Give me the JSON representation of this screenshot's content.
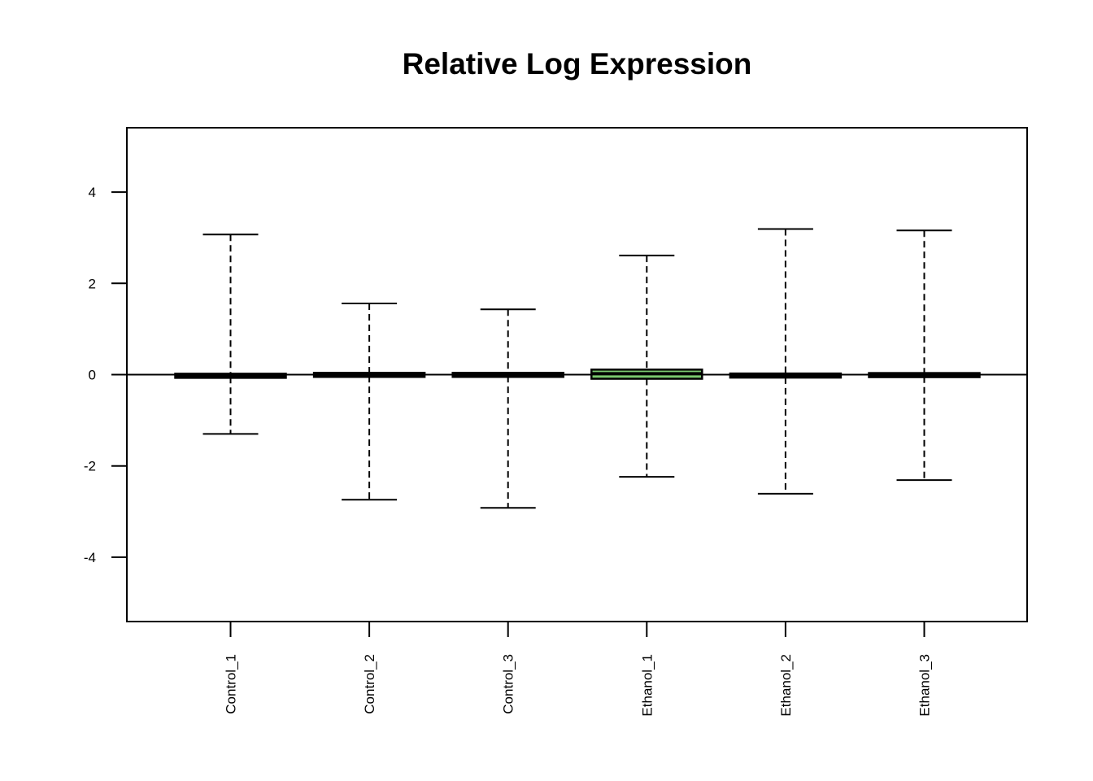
{
  "chart_data": {
    "type": "boxplot",
    "title": "Relative Log Expression",
    "xlabel": "",
    "ylabel": "",
    "ylim": [
      -5.4,
      5.4
    ],
    "yticks": [
      -4,
      -2,
      0,
      2,
      4
    ],
    "reference_line": 0,
    "grid": false,
    "categories": [
      "Control_1",
      "Control_2",
      "Control_3",
      "Ethanol_1",
      "Ethanol_2",
      "Ethanol_3"
    ],
    "boxes": [
      {
        "name": "Control_1",
        "whisker_low": -1.3,
        "q1": -0.05,
        "median": 0.0,
        "q3": 0.0,
        "whisker_high": 3.07,
        "fill": "#000000"
      },
      {
        "name": "Control_2",
        "whisker_low": -2.74,
        "q1": -0.03,
        "median": 0.0,
        "q3": 0.02,
        "whisker_high": 1.56,
        "fill": "#000000"
      },
      {
        "name": "Control_3",
        "whisker_low": -2.92,
        "q1": -0.03,
        "median": 0.0,
        "q3": 0.02,
        "whisker_high": 1.43,
        "fill": "#000000"
      },
      {
        "name": "Ethanol_1",
        "whisker_low": -2.24,
        "q1": -0.09,
        "median": 0.02,
        "q3": 0.11,
        "whisker_high": 2.61,
        "fill": "#7bc96f"
      },
      {
        "name": "Ethanol_2",
        "whisker_low": -2.61,
        "q1": -0.06,
        "median": -0.02,
        "q3": 0.02,
        "whisker_high": 3.19,
        "fill": "#000000"
      },
      {
        "name": "Ethanol_3",
        "whisker_low": -2.31,
        "q1": -0.04,
        "median": 0.0,
        "q3": 0.02,
        "whisker_high": 3.16,
        "fill": "#000000"
      }
    ]
  }
}
